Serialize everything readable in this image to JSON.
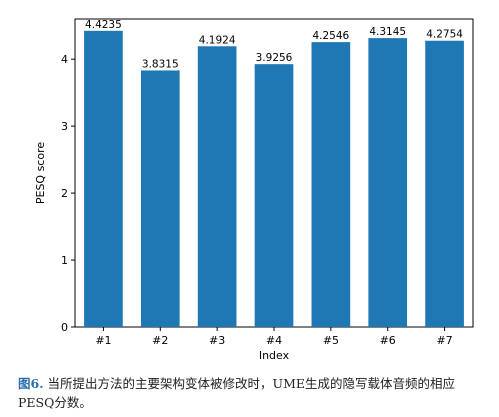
{
  "chart_data": {
    "type": "bar",
    "categories": [
      "#1",
      "#2",
      "#3",
      "#4",
      "#5",
      "#6",
      "#7"
    ],
    "values": [
      4.4235,
      3.8315,
      4.1924,
      3.9256,
      4.2546,
      4.3145,
      4.2754
    ],
    "value_labels": [
      "4.4235",
      "3.8315",
      "4.1924",
      "3.9256",
      "4.2546",
      "4.3145",
      "4.2754"
    ],
    "xlabel": "Index",
    "ylabel": "PESQ score",
    "ylim": [
      0,
      4.6
    ],
    "yticks": [
      0,
      1,
      2,
      3,
      4
    ],
    "grid": false,
    "bar_color": "#1f77b4"
  },
  "caption": {
    "figure_label": "图6.",
    "text": " 当所提出方法的主要架构变体被修改时，UME生成的隐写载体音频的相应PESQ分数。"
  }
}
